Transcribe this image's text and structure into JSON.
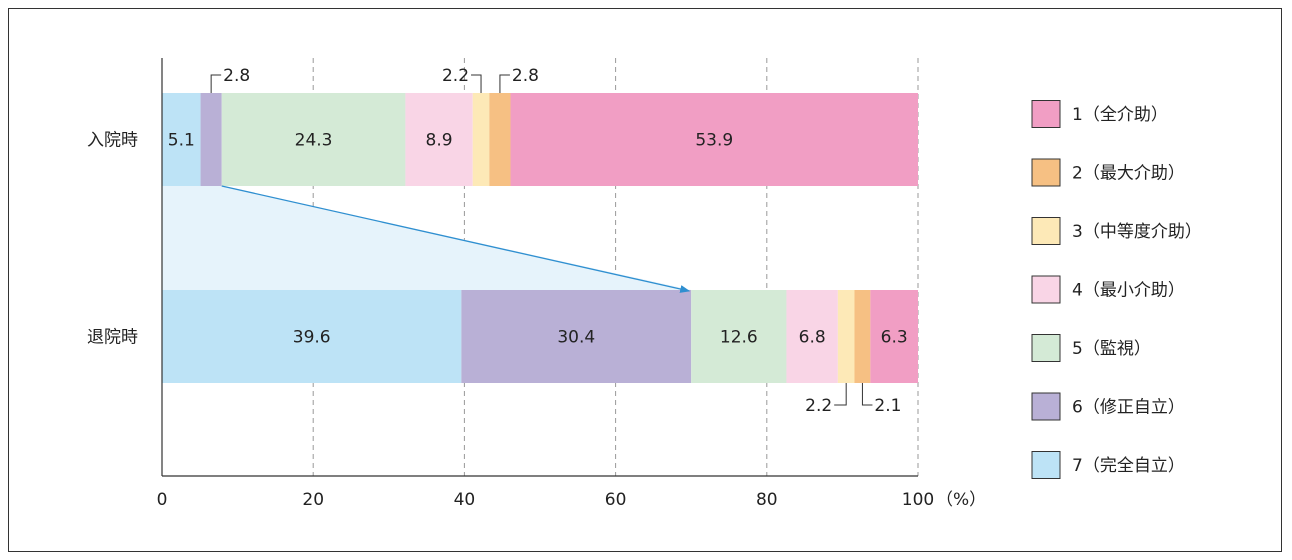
{
  "chart_data": {
    "type": "bar",
    "orientation": "horizontal",
    "stacked": true,
    "categories": [
      "入院時",
      "退院時"
    ],
    "series": [
      {
        "name": "7（完全自立）",
        "color": "#bde3f6",
        "values": [
          5.1,
          39.6
        ]
      },
      {
        "name": "6（修正自立）",
        "color": "#b9b0d6",
        "values": [
          2.8,
          30.4
        ]
      },
      {
        "name": "5（監視）",
        "color": "#d4ead6",
        "values": [
          24.3,
          12.6
        ]
      },
      {
        "name": "4（最小介助）",
        "color": "#f9d5e6",
        "values": [
          8.9,
          6.8
        ]
      },
      {
        "name": "3（中等度介助）",
        "color": "#fde9b7",
        "values": [
          2.2,
          2.2
        ]
      },
      {
        "name": "2（最大介助）",
        "color": "#f6c083",
        "values": [
          2.8,
          2.1
        ]
      },
      {
        "name": "1（全介助）",
        "color": "#f19ec4",
        "values": [
          53.9,
          6.3
        ]
      }
    ],
    "segment_labels": [
      [
        "5.1",
        "",
        "24.3",
        "8.9",
        "",
        "",
        "53.9"
      ],
      [
        "39.6",
        "30.4",
        "12.6",
        "6.8",
        "",
        "",
        "6.3"
      ]
    ],
    "callouts": [
      {
        "text": "2.8",
        "row": 0,
        "series": 1
      },
      {
        "text": "2.2",
        "row": 0,
        "series": 4
      },
      {
        "text": "2.8",
        "row": 0,
        "series": 5
      },
      {
        "text": "2.2",
        "row": 1,
        "series": 4
      },
      {
        "text": "2.1",
        "row": 1,
        "series": 5
      }
    ],
    "xticks": [
      "0",
      "20",
      "40",
      "60",
      "80",
      "100"
    ],
    "xtick_values": [
      0,
      20,
      40,
      60,
      80,
      100
    ],
    "xunit": "（%）",
    "xlim": [
      0,
      100
    ],
    "grid": "vertical-dashed",
    "legend_position": "right",
    "legend_order": [
      6,
      5,
      4,
      3,
      2,
      1,
      0
    ],
    "arrow_color": "#2f8fd0",
    "band_color": "#e6f3fb"
  }
}
